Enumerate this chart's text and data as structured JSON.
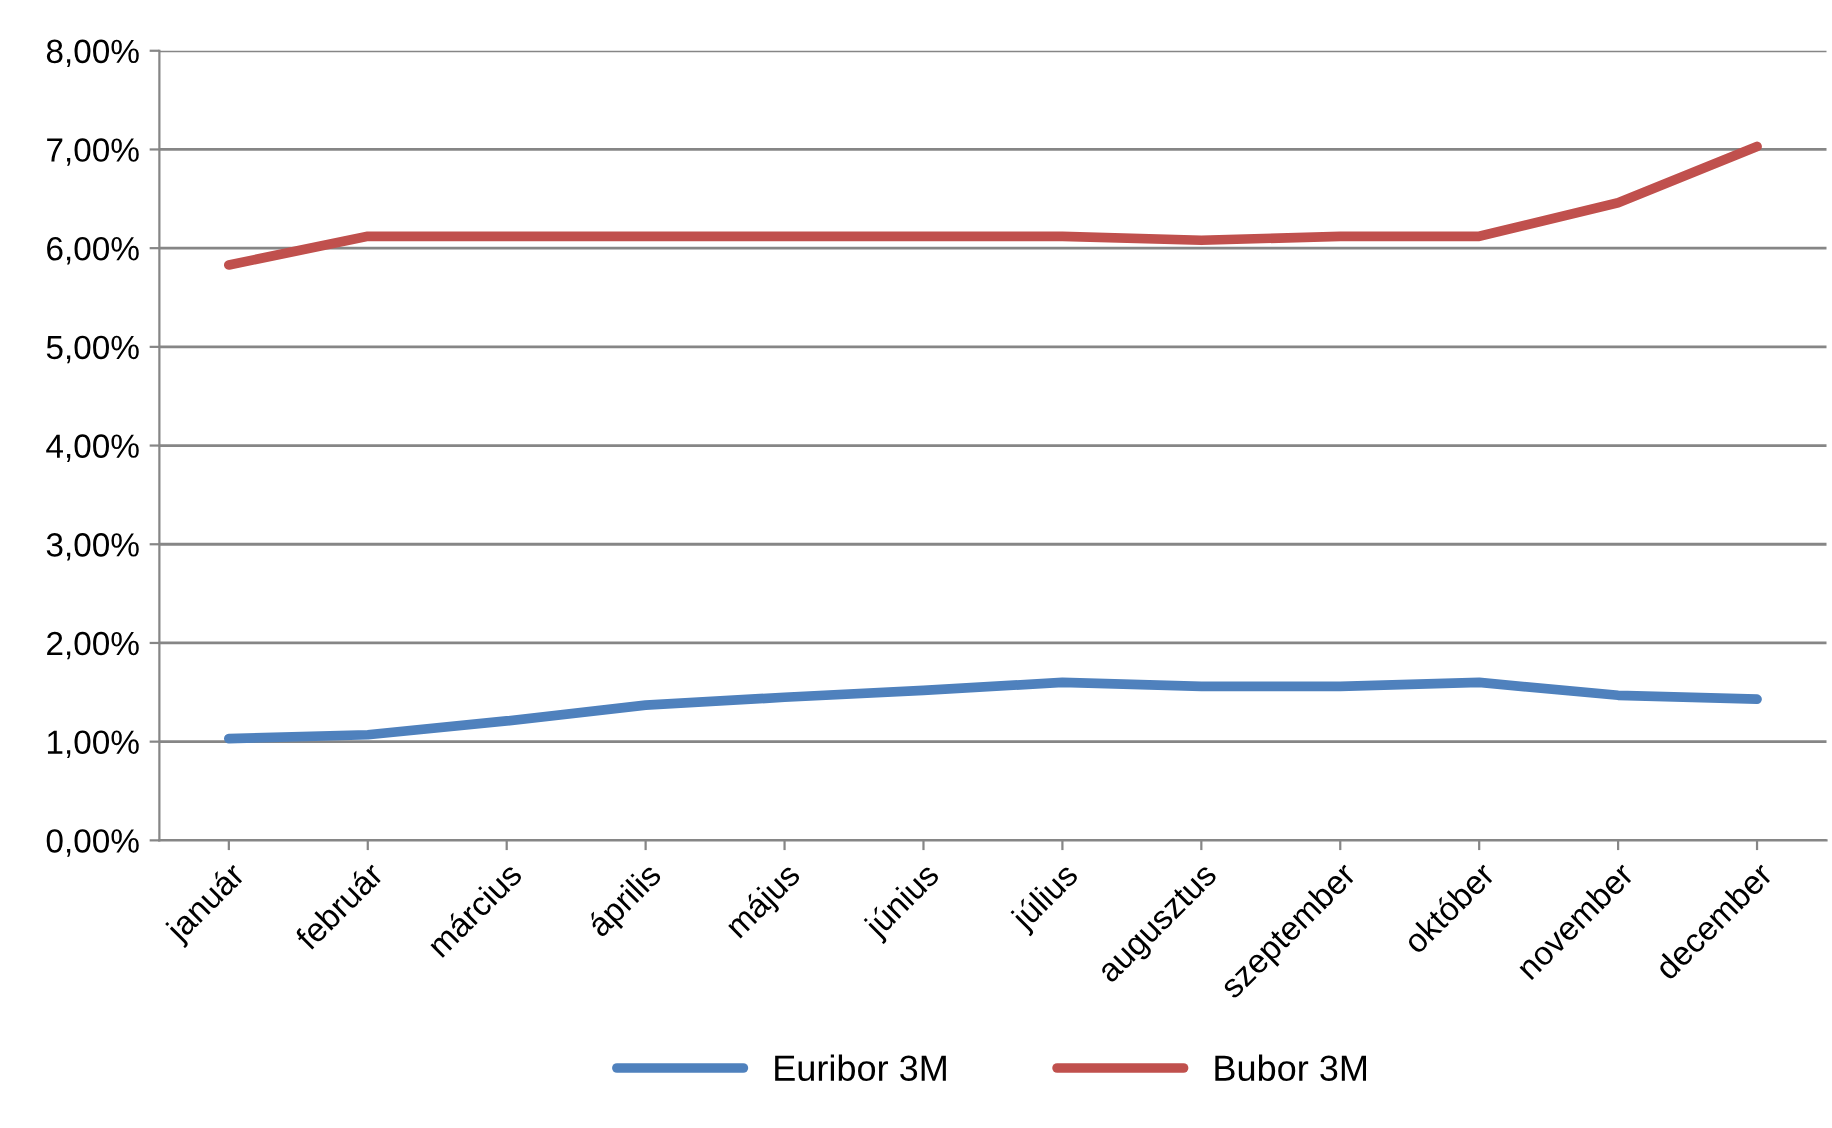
{
  "chart_data": {
    "type": "line",
    "categories": [
      "január",
      "február",
      "március",
      "április",
      "május",
      "június",
      "július",
      "augusztus",
      "szeptember",
      "október",
      "november",
      "december"
    ],
    "series": [
      {
        "name": "Euribor 3M",
        "color": "#4f81bd",
        "values": [
          1.03,
          1.07,
          1.21,
          1.37,
          1.45,
          1.52,
          1.6,
          1.56,
          1.56,
          1.6,
          1.47,
          1.43
        ]
      },
      {
        "name": "Bubor 3M",
        "color": "#c0504d",
        "values": [
          5.83,
          6.12,
          6.12,
          6.12,
          6.12,
          6.12,
          6.12,
          6.08,
          6.12,
          6.12,
          6.46,
          7.03
        ]
      }
    ],
    "ylim": [
      0,
      8
    ],
    "yticks": [
      {
        "value": 0,
        "label": "0,00%"
      },
      {
        "value": 1,
        "label": "1,00%"
      },
      {
        "value": 2,
        "label": "2,00%"
      },
      {
        "value": 3,
        "label": "3,00%"
      },
      {
        "value": 4,
        "label": "4,00%"
      },
      {
        "value": 5,
        "label": "5,00%"
      },
      {
        "value": 6,
        "label": "6,00%"
      },
      {
        "value": 7,
        "label": "7,00%"
      },
      {
        "value": 8,
        "label": "8,00%"
      }
    ],
    "grid": "y",
    "legend": "bottom",
    "marker": "none",
    "line_style": "solid"
  }
}
